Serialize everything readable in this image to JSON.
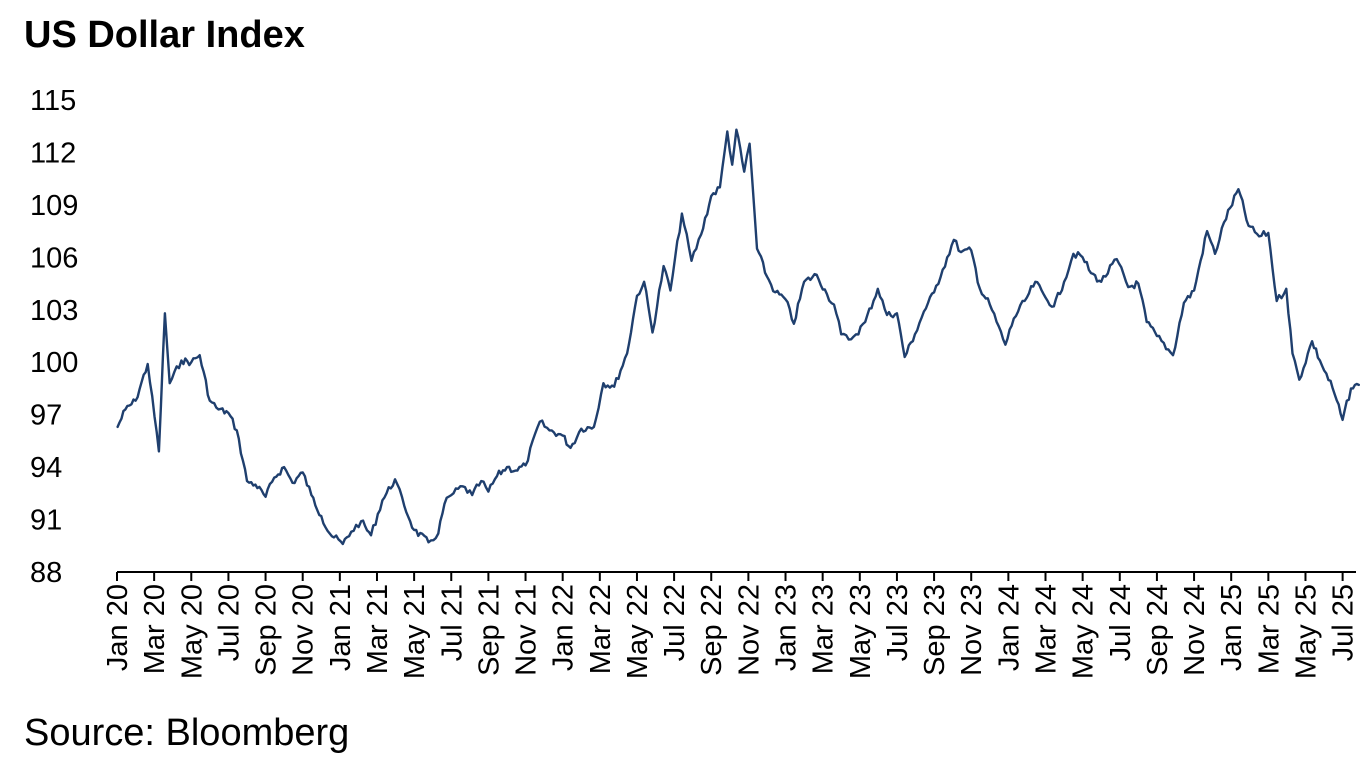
{
  "chart_data": {
    "type": "line",
    "title": "US Dollar Index",
    "source": "Source: Bloomberg",
    "xlabel": "",
    "ylabel": "",
    "ylim": [
      88,
      115
    ],
    "yticks": [
      88,
      91,
      94,
      97,
      100,
      103,
      106,
      109,
      112,
      115
    ],
    "xticks": [
      "Jan 20",
      "Mar 20",
      "May 20",
      "Jul 20",
      "Sep 20",
      "Nov 20",
      "Jan 21",
      "Mar 21",
      "May 21",
      "Jul 21",
      "Sep 21",
      "Nov 21",
      "Jan 22",
      "Mar 22",
      "May 22",
      "Jul 22",
      "Sep 22",
      "Nov 22",
      "Jan 23",
      "Mar 23",
      "May 23",
      "Jul 23",
      "Sep 23",
      "Nov 23",
      "Jan 24",
      "Mar 24",
      "May 24",
      "Jul 24",
      "Sep 24",
      "Nov 24",
      "Jan 25",
      "Mar 25",
      "May 25",
      "Jul 25"
    ],
    "grid": false,
    "legend": false,
    "line_color": "#1f3f6e",
    "series": [
      {
        "x": [
          "2020-01-02",
          "2020-01-15",
          "2020-02-01",
          "2020-02-20",
          "2020-03-09",
          "2020-03-19",
          "2020-03-27",
          "2020-04-15",
          "2020-05-01",
          "2020-05-15",
          "2020-06-01",
          "2020-06-15",
          "2020-07-01",
          "2020-07-15",
          "2020-08-01",
          "2020-08-15",
          "2020-09-01",
          "2020-09-15",
          "2020-10-01",
          "2020-10-15",
          "2020-11-01",
          "2020-11-15",
          "2020-12-01",
          "2020-12-15",
          "2021-01-06",
          "2021-01-20",
          "2021-02-05",
          "2021-02-20",
          "2021-03-10",
          "2021-03-31",
          "2021-04-15",
          "2021-05-01",
          "2021-05-25",
          "2021-06-10",
          "2021-06-20",
          "2021-07-01",
          "2021-07-20",
          "2021-08-05",
          "2021-08-20",
          "2021-09-01",
          "2021-09-15",
          "2021-10-01",
          "2021-10-15",
          "2021-11-01",
          "2021-11-24",
          "2021-12-10",
          "2022-01-01",
          "2022-01-14",
          "2022-02-01",
          "2022-02-20",
          "2022-03-07",
          "2022-03-25",
          "2022-04-15",
          "2022-05-01",
          "2022-05-13",
          "2022-05-27",
          "2022-06-14",
          "2022-06-25",
          "2022-07-14",
          "2022-07-30",
          "2022-08-15",
          "2022-09-01",
          "2022-09-15",
          "2022-09-27",
          "2022-10-05",
          "2022-10-12",
          "2022-10-25",
          "2022-11-03",
          "2022-11-15",
          "2022-12-01",
          "2022-12-15",
          "2023-01-01",
          "2023-01-15",
          "2023-02-01",
          "2023-02-20",
          "2023-03-08",
          "2023-03-20",
          "2023-04-01",
          "2023-04-13",
          "2023-04-25",
          "2023-05-10",
          "2023-05-31",
          "2023-06-15",
          "2023-07-01",
          "2023-07-14",
          "2023-07-31",
          "2023-08-15",
          "2023-09-01",
          "2023-09-15",
          "2023-10-03",
          "2023-10-15",
          "2023-11-01",
          "2023-11-15",
          "2023-12-01",
          "2023-12-27",
          "2024-01-10",
          "2024-02-01",
          "2024-02-14",
          "2024-03-01",
          "2024-03-15",
          "2024-04-01",
          "2024-04-16",
          "2024-05-01",
          "2024-05-15",
          "2024-06-01",
          "2024-06-26",
          "2024-07-15",
          "2024-08-01",
          "2024-08-15",
          "2024-09-01",
          "2024-09-27",
          "2024-10-15",
          "2024-11-01",
          "2024-11-22",
          "2024-12-05",
          "2024-12-20",
          "2025-01-13",
          "2025-01-30",
          "2025-02-15",
          "2025-03-01",
          "2025-03-15",
          "2025-03-31",
          "2025-04-10",
          "2025-04-21",
          "2025-05-12",
          "2025-05-25",
          "2025-06-15",
          "2025-07-01",
          "2025-07-15",
          "2025-07-28"
        ],
        "values": [
          96.3,
          97.3,
          97.8,
          99.9,
          94.9,
          102.8,
          98.8,
          100.1,
          100.0,
          100.4,
          97.8,
          97.3,
          97.1,
          96.1,
          93.2,
          93.0,
          92.3,
          93.4,
          94.0,
          93.1,
          93.7,
          92.4,
          91.2,
          90.2,
          89.6,
          90.3,
          90.9,
          90.1,
          92.1,
          93.3,
          91.8,
          90.4,
          89.7,
          90.2,
          91.9,
          92.4,
          92.9,
          92.4,
          93.2,
          92.6,
          93.5,
          94.0,
          93.8,
          94.1,
          96.6,
          96.1,
          95.8,
          95.1,
          96.2,
          96.3,
          98.8,
          98.6,
          100.5,
          103.8,
          104.6,
          101.7,
          105.5,
          104.1,
          108.5,
          105.8,
          107.3,
          109.5,
          110.0,
          113.2,
          111.3,
          113.3,
          110.9,
          112.5,
          106.5,
          104.9,
          104.0,
          103.6,
          102.2,
          104.6,
          105.0,
          103.9,
          103.3,
          101.6,
          101.3,
          101.6,
          102.3,
          104.2,
          102.7,
          102.8,
          100.3,
          101.6,
          102.9,
          104.0,
          105.3,
          107.0,
          106.3,
          106.4,
          104.2,
          103.3,
          101.0,
          102.5,
          103.7,
          104.6,
          103.7,
          103.2,
          104.6,
          106.2,
          106.0,
          105.1,
          104.6,
          105.9,
          104.3,
          104.5,
          102.3,
          101.5,
          100.4,
          103.4,
          104.1,
          107.5,
          106.2,
          108.0,
          109.9,
          107.8,
          107.2,
          107.4,
          103.5,
          104.2,
          100.5,
          99.0,
          101.2,
          100.1,
          98.5,
          96.7,
          98.5,
          98.7
        ]
      }
    ]
  }
}
